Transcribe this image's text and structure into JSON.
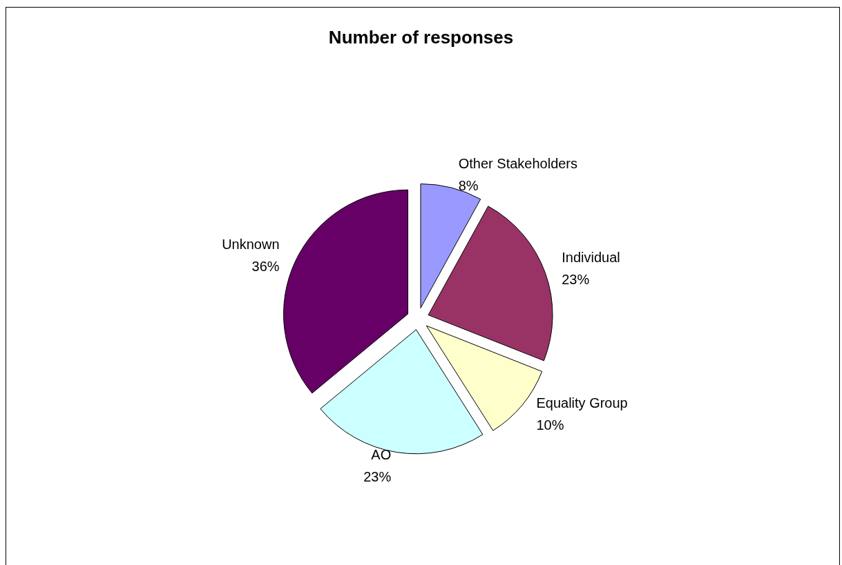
{
  "chart_data": {
    "type": "pie",
    "title": "Number of responses",
    "categories": [
      "Other Stakeholders",
      "Individual",
      "Equality Group",
      "AO",
      "Unknown"
    ],
    "values": [
      8,
      23,
      10,
      23,
      36
    ],
    "colors": [
      "#9999ff",
      "#993366",
      "#ffffcc",
      "#ccffff",
      "#660066"
    ],
    "value_labels": [
      "8%",
      "23%",
      "10%",
      "23%",
      "36%"
    ],
    "legend": false
  }
}
